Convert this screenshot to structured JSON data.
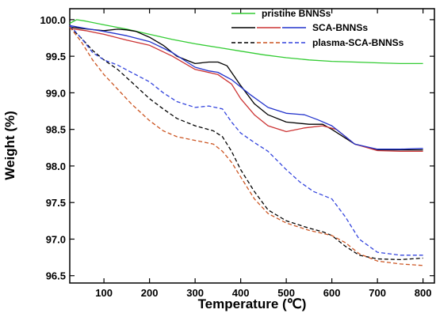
{
  "chart_data": {
    "type": "line",
    "xlabel": "Temperature (℃)",
    "ylabel": "Weight (%)",
    "xlim": [
      25,
      825
    ],
    "ylim": [
      96.4,
      100.15
    ],
    "xticks": [
      100,
      200,
      300,
      400,
      500,
      600,
      700,
      800
    ],
    "yticks": [
      96.5,
      97.0,
      97.5,
      98.0,
      98.5,
      99.0,
      99.5,
      100.0
    ],
    "grid": false,
    "legend_position": "top-right",
    "series": [
      {
        "name": "pristine BNNSs",
        "color": "#33cc33",
        "dash": "solid",
        "legend_row": 0,
        "x": [
          25,
          40,
          60,
          100,
          150,
          200,
          250,
          300,
          350,
          400,
          450,
          500,
          550,
          600,
          650,
          700,
          750,
          800
        ],
        "y": [
          99.95,
          100.0,
          99.98,
          99.93,
          99.87,
          99.8,
          99.73,
          99.67,
          99.62,
          99.57,
          99.52,
          99.48,
          99.45,
          99.43,
          99.42,
          99.41,
          99.4,
          99.4
        ]
      },
      {
        "name": "",
        "color": "#000000",
        "dash": "solid",
        "legend_row": 1,
        "x": [
          25,
          50,
          100,
          130,
          150,
          170,
          200,
          230,
          260,
          300,
          330,
          350,
          370,
          400,
          430,
          460,
          500,
          550,
          580,
          600,
          650,
          700,
          750,
          800
        ],
        "y": [
          99.9,
          99.88,
          99.85,
          99.87,
          99.86,
          99.84,
          99.76,
          99.65,
          99.5,
          99.4,
          99.42,
          99.42,
          99.37,
          99.1,
          98.85,
          98.7,
          98.6,
          98.57,
          98.57,
          98.5,
          98.3,
          98.22,
          98.22,
          98.22
        ]
      },
      {
        "name": "",
        "color": "#cc3333",
        "dash": "solid",
        "legend_row": 1,
        "x": [
          25,
          60,
          100,
          150,
          200,
          250,
          300,
          350,
          380,
          400,
          430,
          460,
          500,
          540,
          580,
          610,
          650,
          700,
          750,
          800
        ],
        "y": [
          99.88,
          99.85,
          99.8,
          99.72,
          99.65,
          99.5,
          99.32,
          99.25,
          99.12,
          98.92,
          98.7,
          98.55,
          98.47,
          98.52,
          98.55,
          98.5,
          98.3,
          98.21,
          98.2,
          98.2
        ]
      },
      {
        "name": "SCA-BNNSs",
        "color": "#2233cc",
        "dash": "solid",
        "legend_row": 1,
        "x": [
          25,
          60,
          100,
          150,
          200,
          250,
          300,
          330,
          350,
          380,
          420,
          460,
          500,
          540,
          570,
          600,
          630,
          650,
          700,
          750,
          800
        ],
        "y": [
          99.92,
          99.88,
          99.84,
          99.78,
          99.7,
          99.55,
          99.35,
          99.3,
          99.28,
          99.18,
          98.98,
          98.8,
          98.72,
          98.7,
          98.63,
          98.55,
          98.4,
          98.3,
          98.23,
          98.23,
          98.24
        ]
      },
      {
        "name": "",
        "color": "#000000",
        "dash": "dashed",
        "legend_row": 2,
        "x": [
          25,
          50,
          75,
          100,
          130,
          160,
          200,
          230,
          260,
          300,
          340,
          360,
          380,
          400,
          430,
          460,
          500,
          550,
          580,
          600,
          630,
          660,
          700,
          750,
          800
        ],
        "y": [
          99.9,
          99.75,
          99.58,
          99.45,
          99.32,
          99.15,
          98.92,
          98.78,
          98.65,
          98.55,
          98.48,
          98.4,
          98.2,
          97.95,
          97.65,
          97.4,
          97.25,
          97.15,
          97.1,
          97.05,
          96.9,
          96.78,
          96.73,
          96.72,
          96.74
        ]
      },
      {
        "name": "",
        "color": "#cc5522",
        "dash": "dashed",
        "legend_row": 2,
        "x": [
          25,
          50,
          75,
          100,
          130,
          160,
          200,
          230,
          260,
          300,
          340,
          360,
          380,
          400,
          430,
          460,
          500,
          550,
          600,
          630,
          660,
          700,
          750,
          800
        ],
        "y": [
          99.9,
          99.7,
          99.45,
          99.25,
          99.05,
          98.85,
          98.62,
          98.48,
          98.4,
          98.35,
          98.3,
          98.2,
          98.05,
          97.85,
          97.55,
          97.35,
          97.22,
          97.12,
          97.05,
          96.95,
          96.8,
          96.7,
          96.66,
          96.64
        ]
      },
      {
        "name": "plasma-SCA-BNNSs",
        "color": "#3344dd",
        "dash": "dashed",
        "legend_row": 2,
        "x": [
          25,
          50,
          75,
          100,
          130,
          160,
          200,
          230,
          260,
          300,
          330,
          360,
          380,
          400,
          430,
          460,
          500,
          530,
          560,
          600,
          630,
          660,
          700,
          750,
          800
        ],
        "y": [
          99.92,
          99.75,
          99.55,
          99.45,
          99.38,
          99.28,
          99.15,
          99.0,
          98.88,
          98.8,
          98.82,
          98.78,
          98.6,
          98.45,
          98.32,
          98.2,
          97.95,
          97.78,
          97.65,
          97.55,
          97.3,
          97.0,
          96.82,
          96.78,
          96.78
        ]
      }
    ]
  }
}
